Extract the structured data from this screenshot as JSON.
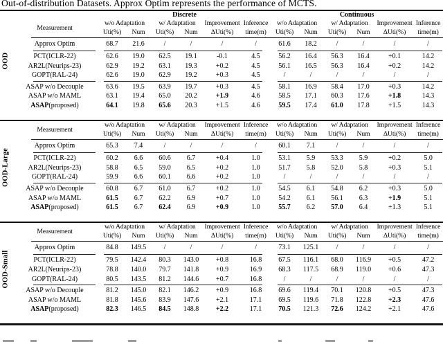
{
  "caption": "Out-of-distribution Datasets. Approx Optim represents the performance of MCTS.",
  "table": {
    "group_headers": [
      "Discrete",
      "Continuous"
    ],
    "measurement_header": "Measurement",
    "column_groups": [
      {
        "label": "w/o Adaptation",
        "subs": [
          "Uti(%)",
          "Num"
        ]
      },
      {
        "label": "w/ Adaptation",
        "subs": [
          "Uti(%)",
          "Num"
        ]
      },
      {
        "label": "Improvement",
        "subs": [
          "ΔUti(%)"
        ]
      },
      {
        "label": "Inference",
        "subs": [
          "time(m)"
        ]
      }
    ],
    "sections": [
      {
        "label": "OOD",
        "show_group_header": true,
        "row_groups": [
          [
            {
              "label_parts": [
                {
                  "text": "Approx Optim",
                  "bold": false
                }
              ],
              "cells": [
                "68.7",
                "21.6",
                "/",
                "/",
                "/",
                "/",
                "61.6",
                "18.2",
                "/",
                "/",
                "/",
                "/"
              ],
              "bold_cells": []
            }
          ],
          [
            {
              "label_parts": [
                {
                  "text": "PCT(ICLR-22)",
                  "bold": false
                }
              ],
              "cells": [
                "62.6",
                "19.0",
                "62.5",
                "19.1",
                "-0.1",
                "4.5",
                "56.2",
                "16.4",
                "56.3",
                "16.4",
                "+0.1",
                "14.2"
              ],
              "bold_cells": []
            },
            {
              "label_parts": [
                {
                  "text": "AR2L(Neurips-23)",
                  "bold": false
                }
              ],
              "cells": [
                "62.9",
                "19.2",
                "63.1",
                "19.3",
                "+0.2",
                "4.5",
                "56.1",
                "16.5",
                "56.3",
                "16.4",
                "+0.2",
                "14.2"
              ],
              "bold_cells": []
            },
            {
              "label_parts": [
                {
                  "text": "GOPT(RAL-24)",
                  "bold": false
                }
              ],
              "cells": [
                "62.6",
                "19.0",
                "62.9",
                "19.2",
                "+0.3",
                "4.5",
                "/",
                "/",
                "/",
                "/",
                "/",
                "/"
              ],
              "bold_cells": []
            }
          ],
          [
            {
              "label_parts": [
                {
                  "text": "ASAP w/o Decouple",
                  "bold": false
                }
              ],
              "cells": [
                "63.6",
                "19.5",
                "63.9",
                "19.7",
                "+0.3",
                "4.5",
                "58.1",
                "16.9",
                "58.4",
                "17.0",
                "+0.3",
                "14.2"
              ],
              "bold_cells": []
            },
            {
              "label_parts": [
                {
                  "text": "ASAP w/o MAML",
                  "bold": false
                }
              ],
              "cells": [
                "63.1",
                "19.4",
                "65.0",
                "20.2",
                "+1.9",
                "4.6",
                "58.5",
                "17.1",
                "60.3",
                "17.6",
                "+1.8",
                "14.3"
              ],
              "bold_cells": [
                4,
                10
              ]
            },
            {
              "label_parts": [
                {
                  "text": "ASAP",
                  "bold": true
                },
                {
                  "text": "(proposed)",
                  "bold": false
                }
              ],
              "cells": [
                "64.1",
                "19.8",
                "65.6",
                "20.3",
                "+1.5",
                "4.6",
                "59.5",
                "17.4",
                "61.0",
                "17.8",
                "+1.5",
                "14.3"
              ],
              "bold_cells": [
                0,
                2,
                6,
                8
              ]
            }
          ]
        ]
      },
      {
        "label": "OOD-Large",
        "show_group_header": false,
        "row_groups": [
          [
            {
              "label_parts": [
                {
                  "text": "Approx Optim",
                  "bold": false
                }
              ],
              "cells": [
                "65.3",
                "7.4",
                "/",
                "/",
                "/",
                "/",
                "60.1",
                "7.1",
                "/",
                "/",
                "/",
                "/"
              ],
              "bold_cells": []
            }
          ],
          [
            {
              "label_parts": [
                {
                  "text": "PCT(ICLR-22)",
                  "bold": false
                }
              ],
              "cells": [
                "60.2",
                "6.6",
                "60.6",
                "6.7",
                "+0.4",
                "1.0",
                "53.1",
                "5.9",
                "53.3",
                "5.9",
                "+0.2",
                "5.0"
              ],
              "bold_cells": []
            },
            {
              "label_parts": [
                {
                  "text": "AR2L(Neurips-23)",
                  "bold": false
                }
              ],
              "cells": [
                "58.8",
                "6.5",
                "59.0",
                "6.5",
                "+0.2",
                "1.0",
                "51.7",
                "5.8",
                "52.0",
                "5.8",
                "+0.3",
                "5.1"
              ],
              "bold_cells": []
            },
            {
              "label_parts": [
                {
                  "text": "GOPT(RAL-24)",
                  "bold": false
                }
              ],
              "cells": [
                "59.9",
                "6.6",
                "60.1",
                "6.6",
                "+0.2",
                "1.0",
                "/",
                "/",
                "/",
                "/",
                "/",
                "/"
              ],
              "bold_cells": []
            }
          ],
          [
            {
              "label_parts": [
                {
                  "text": "ASAP w/o Decouple",
                  "bold": false
                }
              ],
              "cells": [
                "60.8",
                "6.7",
                "61.0",
                "6.7",
                "+0.2",
                "1.0",
                "54.5",
                "6.1",
                "54.8",
                "6.2",
                "+0.3",
                "5.0"
              ],
              "bold_cells": []
            },
            {
              "label_parts": [
                {
                  "text": "ASAP w/o MAML",
                  "bold": false
                }
              ],
              "cells": [
                "61.5",
                "6.7",
                "62.2",
                "6.9",
                "+0.7",
                "1.0",
                "54.2",
                "6.1",
                "56.1",
                "6.3",
                "+1.9",
                "5.1"
              ],
              "bold_cells": [
                0,
                10
              ]
            },
            {
              "label_parts": [
                {
                  "text": "ASAP",
                  "bold": true
                },
                {
                  "text": "(proposed)",
                  "bold": false
                }
              ],
              "cells": [
                "61.5",
                "6.7",
                "62.4",
                "6.9",
                "+0.9",
                "1.0",
                "55.7",
                "6.2",
                "57.0",
                "6.4",
                "+1.3",
                "5.1"
              ],
              "bold_cells": [
                0,
                2,
                4,
                6,
                8
              ]
            }
          ]
        ]
      },
      {
        "label": "OOD-Small",
        "show_group_header": false,
        "row_groups": [
          [
            {
              "label_parts": [
                {
                  "text": "Approx Optim",
                  "bold": false
                }
              ],
              "cells": [
                "84.8",
                "149.5",
                "/",
                "/",
                "/",
                "/",
                "73.1",
                "125.1",
                "/",
                "/",
                "/",
                "/"
              ],
              "bold_cells": []
            }
          ],
          [
            {
              "label_parts": [
                {
                  "text": "PCT(ICLR-22)",
                  "bold": false
                }
              ],
              "cells": [
                "79.5",
                "142.4",
                "80.3",
                "143.0",
                "+0.8",
                "16.8",
                "67.5",
                "116.1",
                "68.0",
                "116.9",
                "+0.5",
                "47.2"
              ],
              "bold_cells": []
            },
            {
              "label_parts": [
                {
                  "text": "AR2L(Neurips-23)",
                  "bold": false
                }
              ],
              "cells": [
                "78.8",
                "140.0",
                "79.7",
                "141.8",
                "+0.9",
                "16.9",
                "68.3",
                "117.5",
                "68.9",
                "119.0",
                "+0.6",
                "47.3"
              ],
              "bold_cells": []
            },
            {
              "label_parts": [
                {
                  "text": "GOPT(RAL-24)",
                  "bold": false
                }
              ],
              "cells": [
                "80.5",
                "143.5",
                "81.2",
                "144.6",
                "+0.7",
                "16.8",
                "/",
                "/",
                "/",
                "/",
                "/",
                "/"
              ],
              "bold_cells": []
            }
          ],
          [
            {
              "label_parts": [
                {
                  "text": "ASAP w/o Decouple",
                  "bold": false
                }
              ],
              "cells": [
                "81.2",
                "145.0",
                "82.1",
                "146.2",
                "+0.9",
                "16.8",
                "69.6",
                "119.4",
                "70.1",
                "120.8",
                "+0.5",
                "47.3"
              ],
              "bold_cells": []
            },
            {
              "label_parts": [
                {
                  "text": "ASAP w/o MAML",
                  "bold": false
                }
              ],
              "cells": [
                "81.8",
                "145.6",
                "83.9",
                "147.6",
                "+2.1",
                "17.1",
                "69.5",
                "119.6",
                "71.8",
                "122.8",
                "+2.3",
                "47.6"
              ],
              "bold_cells": [
                10
              ]
            },
            {
              "label_parts": [
                {
                  "text": "ASAP",
                  "bold": true
                },
                {
                  "text": "(proposed)",
                  "bold": false
                }
              ],
              "cells": [
                "82.3",
                "146.5",
                "84.5",
                "148.8",
                "+2.2",
                "17.1",
                "70.5",
                "121.3",
                "72.6",
                "124.2",
                "+2.1",
                "47.6"
              ],
              "bold_cells": [
                0,
                2,
                4,
                6,
                8
              ]
            }
          ]
        ]
      }
    ]
  }
}
